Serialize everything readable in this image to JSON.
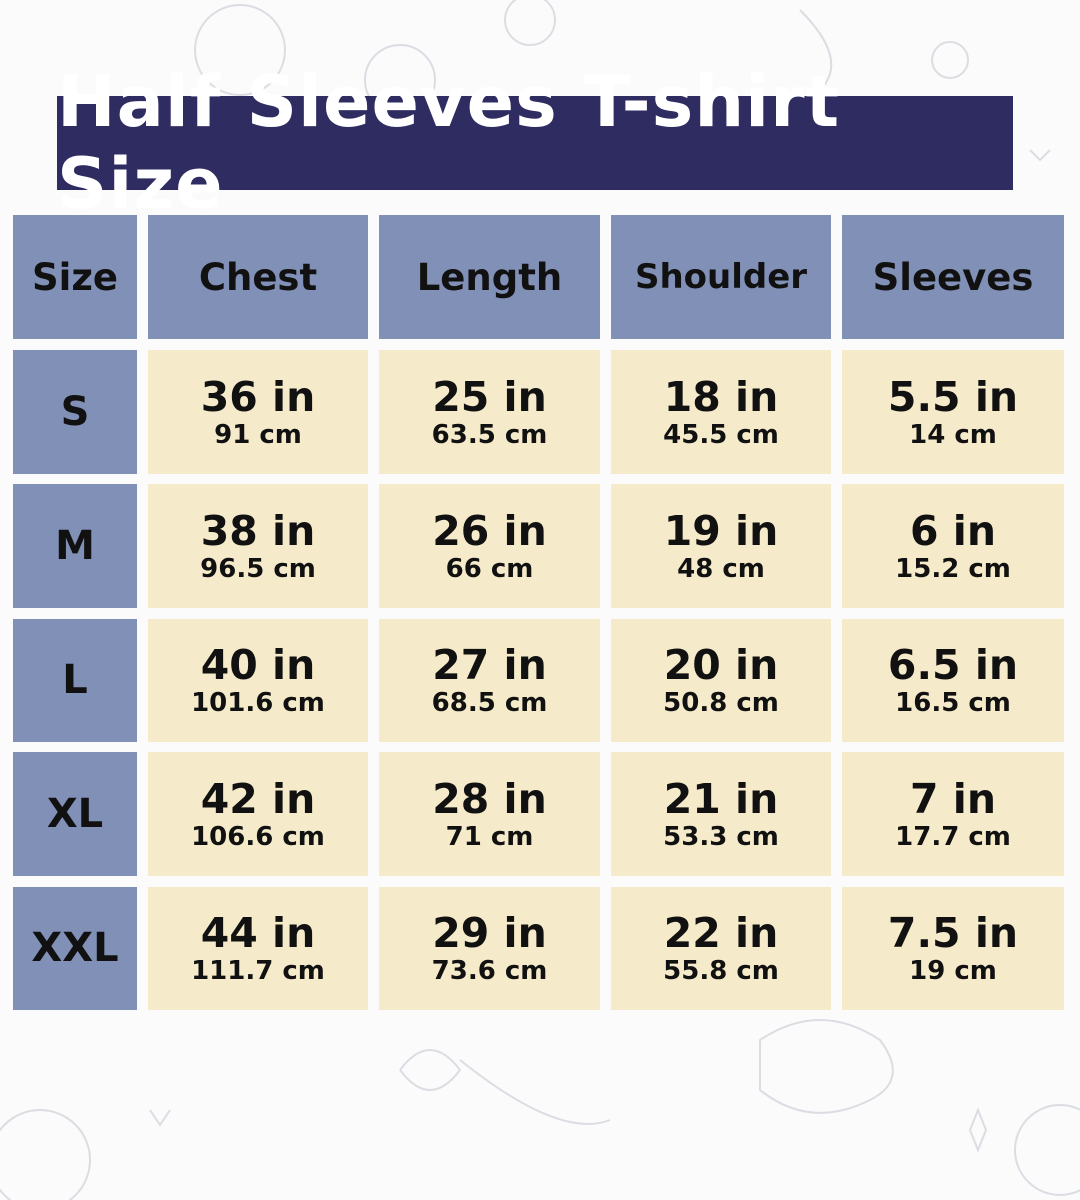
{
  "title": "Half Sleeves T-shirt Size",
  "colors": {
    "title_bg": "#2f2c62",
    "header_bg": "#8190b7",
    "cell_bg": "#f5ebca"
  },
  "headers": [
    "Size",
    "Chest",
    "Length",
    "Shoulder",
    "Sleeves"
  ],
  "rows": [
    {
      "size": "S",
      "values": [
        {
          "in": "36 in",
          "cm": "91 cm"
        },
        {
          "in": "25 in",
          "cm": "63.5 cm"
        },
        {
          "in": "18 in",
          "cm": "45.5 cm"
        },
        {
          "in": "5.5 in",
          "cm": "14 cm"
        }
      ]
    },
    {
      "size": "M",
      "values": [
        {
          "in": "38 in",
          "cm": "96.5 cm"
        },
        {
          "in": "26 in",
          "cm": "66 cm"
        },
        {
          "in": "19 in",
          "cm": "48 cm"
        },
        {
          "in": "6 in",
          "cm": "15.2 cm"
        }
      ]
    },
    {
      "size": "L",
      "values": [
        {
          "in": "40 in",
          "cm": "101.6 cm"
        },
        {
          "in": "27 in",
          "cm": "68.5 cm"
        },
        {
          "in": "20 in",
          "cm": "50.8 cm"
        },
        {
          "in": "6.5 in",
          "cm": "16.5 cm"
        }
      ]
    },
    {
      "size": "XL",
      "values": [
        {
          "in": "42 in",
          "cm": "106.6 cm"
        },
        {
          "in": "28 in",
          "cm": "71 cm"
        },
        {
          "in": "21 in",
          "cm": "53.3 cm"
        },
        {
          "in": "7 in",
          "cm": "17.7 cm"
        }
      ]
    },
    {
      "size": "XXL",
      "values": [
        {
          "in": "44 in",
          "cm": "111.7 cm"
        },
        {
          "in": "29 in",
          "cm": "73.6 cm"
        },
        {
          "in": "22 in",
          "cm": "55.8 cm"
        },
        {
          "in": "7.5 in",
          "cm": "19 cm"
        }
      ]
    }
  ]
}
